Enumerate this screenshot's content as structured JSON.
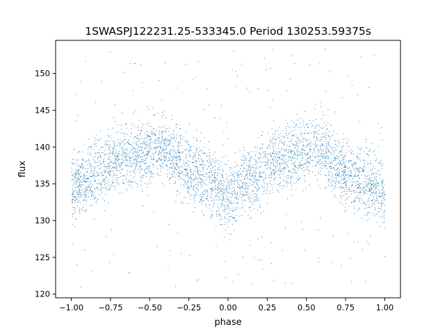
{
  "chart_data": {
    "type": "scatter",
    "title": "1SWASPJ122231.25-533345.0 Period 130253.59375s",
    "xlabel": "phase",
    "ylabel": "flux",
    "xlim": [
      -1.1,
      1.1
    ],
    "ylim": [
      119.5,
      154.5
    ],
    "x_ticks": [
      -1.0,
      -0.75,
      -0.5,
      -0.25,
      0.0,
      0.25,
      0.5,
      0.75,
      1.0
    ],
    "x_tick_labels": [
      "−1.00",
      "−0.75",
      "−0.50",
      "−0.25",
      "0.00",
      "0.25",
      "0.50",
      "0.75",
      "1.00"
    ],
    "y_ticks": [
      120,
      125,
      130,
      135,
      140,
      145,
      150
    ],
    "y_tick_labels": [
      "120",
      "125",
      "130",
      "135",
      "140",
      "145",
      "150"
    ],
    "grid": false,
    "legend": "none",
    "marker_color": "#1f77b4",
    "series": [
      {
        "phase_curve": {
          "x": [
            -1.0,
            -0.9,
            -0.8,
            -0.7,
            -0.6,
            -0.5,
            -0.45,
            -0.4,
            -0.3,
            -0.2,
            -0.1,
            0.0,
            0.1,
            0.2,
            0.3,
            0.4,
            0.5,
            0.55,
            0.6,
            0.7,
            0.8,
            0.9,
            1.0
          ],
          "y": [
            134.5,
            136.0,
            137.0,
            138.5,
            139.0,
            139.5,
            140.5,
            139.5,
            137.5,
            136.0,
            135.0,
            133.0,
            135.5,
            136.5,
            138.5,
            139.0,
            139.5,
            140.5,
            139.5,
            137.5,
            136.0,
            135.0,
            133.5
          ]
        },
        "scatter_spread": 2.2,
        "outlier_range": [
          121,
          153.5
        ]
      }
    ]
  }
}
